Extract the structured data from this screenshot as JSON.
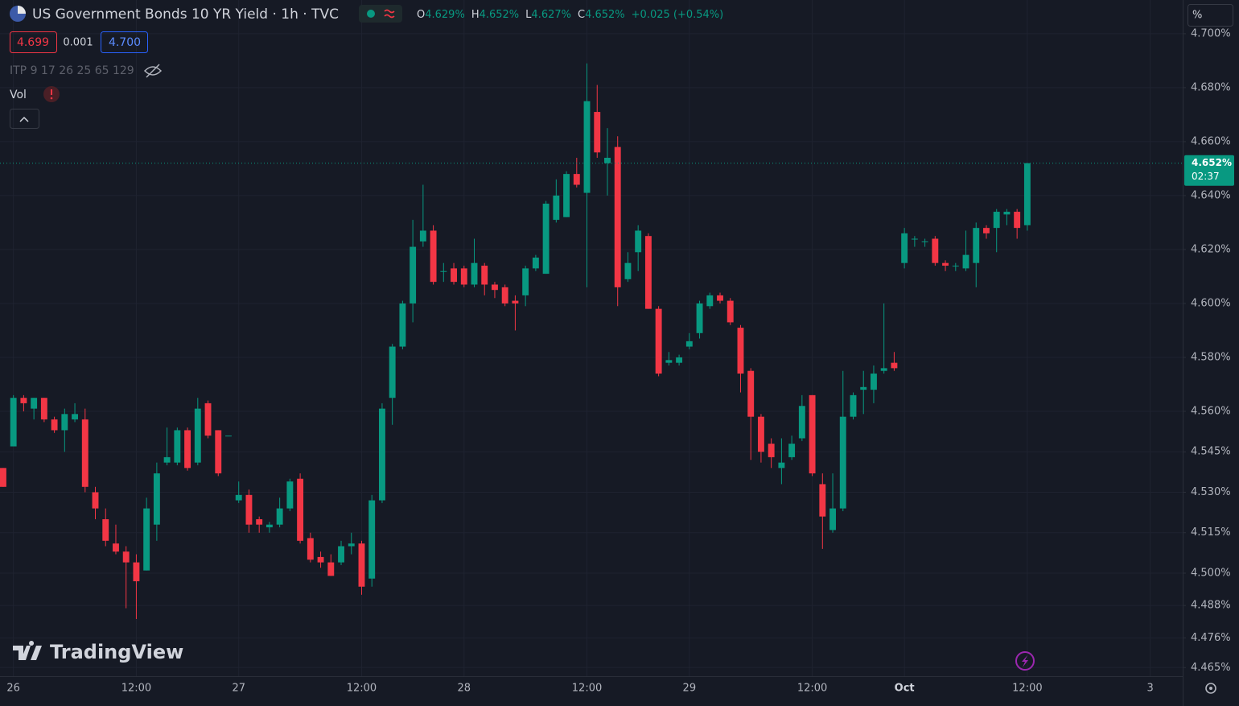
{
  "header": {
    "title": "US Government Bonds 10 YR Yield · 1h · TVC",
    "legend": [
      {
        "key": "O",
        "value": "4.629%"
      },
      {
        "key": "H",
        "value": "4.652%"
      },
      {
        "key": "L",
        "value": "4.627%"
      },
      {
        "key": "C",
        "value": "4.652%"
      }
    ],
    "change": "+0.025 (+0.54%)"
  },
  "quote": {
    "bid": "4.699",
    "spread": "0.001",
    "ask": "4.700"
  },
  "indicators": {
    "itp": "ITP 9 17 26 25 65 129",
    "vol": "Vol"
  },
  "logo": "TradingView",
  "chart_data": {
    "type": "candlestick",
    "unit": "%",
    "grid": true,
    "up_color": "#089981",
    "down_color": "#f23645",
    "x": [
      0,
      1,
      2,
      3,
      4,
      5,
      6,
      7,
      8,
      9,
      10,
      11,
      12,
      13,
      14,
      15,
      16,
      17,
      18,
      19,
      20,
      21,
      22,
      23,
      24,
      25,
      26,
      27,
      28,
      29,
      30,
      31,
      32,
      33,
      34,
      35,
      36,
      37,
      38,
      39,
      40,
      41,
      42,
      43,
      44,
      45,
      46,
      47,
      48,
      49,
      50,
      51,
      52,
      53,
      54,
      55,
      56,
      57,
      58,
      59,
      60,
      61,
      62,
      63,
      64,
      65,
      66,
      67,
      68,
      69,
      70,
      71,
      72,
      73,
      74,
      75,
      76,
      77,
      78,
      79,
      80,
      81,
      82,
      83,
      84,
      85,
      86,
      87,
      88,
      89,
      90,
      91,
      92,
      93,
      94,
      95,
      96,
      97,
      98,
      99,
      100
    ],
    "open": [
      4.539,
      4.547,
      4.565,
      4.561,
      4.565,
      4.557,
      4.553,
      4.557,
      4.557,
      4.53,
      4.52,
      4.511,
      4.508,
      4.504,
      4.501,
      4.518,
      4.541,
      4.541,
      4.553,
      4.541,
      4.563,
      4.553,
      4.551,
      4.527,
      4.529,
      4.52,
      4.517,
      4.518,
      4.524,
      4.535,
      4.513,
      4.506,
      4.504,
      4.504,
      4.51,
      4.511,
      4.498,
      4.527,
      4.565,
      4.584,
      4.6,
      4.623,
      4.627,
      4.612,
      4.613,
      4.613,
      4.607,
      4.614,
      4.607,
      4.606,
      4.601,
      4.603,
      4.613,
      4.611,
      4.631,
      4.632,
      4.648,
      4.641,
      4.671,
      4.652,
      4.658,
      4.609,
      4.619,
      4.625,
      4.598,
      4.578,
      4.578,
      4.584,
      4.589,
      4.599,
      4.603,
      4.601,
      4.591,
      4.575,
      4.558,
      4.548,
      4.539,
      4.543,
      4.55,
      4.566,
      4.533,
      4.516,
      4.524,
      4.558,
      4.568,
      4.568,
      4.575,
      4.578,
      4.615,
      4.624,
      4.623,
      4.624,
      4.615,
      4.614,
      4.613,
      4.615,
      4.628,
      4.628,
      4.633,
      4.634,
      4.629
    ],
    "high": [
      4.539,
      4.566,
      4.566,
      4.565,
      4.565,
      4.558,
      4.561,
      4.563,
      4.561,
      4.532,
      4.524,
      4.518,
      4.51,
      4.507,
      4.528,
      4.541,
      4.554,
      4.554,
      4.554,
      4.565,
      4.564,
      4.553,
      4.551,
      4.534,
      4.531,
      4.521,
      4.519,
      4.528,
      4.535,
      4.537,
      4.515,
      4.508,
      4.507,
      4.512,
      4.515,
      4.512,
      4.529,
      4.563,
      4.585,
      4.601,
      4.631,
      4.644,
      4.629,
      4.615,
      4.615,
      4.614,
      4.624,
      4.615,
      4.608,
      4.607,
      4.603,
      4.614,
      4.618,
      4.638,
      4.646,
      4.649,
      4.654,
      4.689,
      4.681,
      4.665,
      4.662,
      4.619,
      4.629,
      4.626,
      4.599,
      4.582,
      4.581,
      4.589,
      4.601,
      4.604,
      4.604,
      4.602,
      4.592,
      4.576,
      4.559,
      4.55,
      4.55,
      4.551,
      4.566,
      4.566,
      4.537,
      4.537,
      4.575,
      4.567,
      4.575,
      4.577,
      4.6,
      4.582,
      4.628,
      4.625,
      4.624,
      4.625,
      4.616,
      4.615,
      4.627,
      4.63,
      4.629,
      4.635,
      4.635,
      4.635,
      4.652
    ],
    "low": [
      4.532,
      4.547,
      4.56,
      4.557,
      4.556,
      4.552,
      4.545,
      4.556,
      4.53,
      4.52,
      4.51,
      4.507,
      4.487,
      4.483,
      4.501,
      4.512,
      4.54,
      4.54,
      4.538,
      4.54,
      4.55,
      4.536,
      4.551,
      4.526,
      4.515,
      4.515,
      4.515,
      4.517,
      4.523,
      4.511,
      4.504,
      4.502,
      4.499,
      4.503,
      4.507,
      4.492,
      4.495,
      4.526,
      4.555,
      4.583,
      4.593,
      4.621,
      4.607,
      4.608,
      4.607,
      4.606,
      4.606,
      4.603,
      4.602,
      4.599,
      4.59,
      4.599,
      4.612,
      4.611,
      4.63,
      4.632,
      4.643,
      4.606,
      4.654,
      4.64,
      4.599,
      4.608,
      4.612,
      4.598,
      4.573,
      4.577,
      4.577,
      4.583,
      4.587,
      4.598,
      4.6,
      4.592,
      4.567,
      4.542,
      4.541,
      4.539,
      4.533,
      4.542,
      4.549,
      4.536,
      4.509,
      4.515,
      4.523,
      4.557,
      4.559,
      4.563,
      4.574,
      4.575,
      4.613,
      4.621,
      4.621,
      4.614,
      4.612,
      4.612,
      4.612,
      4.606,
      4.624,
      4.619,
      4.629,
      4.624,
      4.627
    ],
    "close": [
      4.532,
      4.565,
      4.563,
      4.565,
      4.557,
      4.553,
      4.559,
      4.559,
      4.532,
      4.524,
      4.512,
      4.508,
      4.504,
      4.497,
      4.524,
      4.537,
      4.543,
      4.553,
      4.539,
      4.561,
      4.551,
      4.537,
      4.551,
      4.529,
      4.518,
      4.518,
      4.518,
      4.524,
      4.534,
      4.512,
      4.505,
      4.504,
      4.499,
      4.51,
      4.511,
      4.495,
      4.527,
      4.561,
      4.584,
      4.6,
      4.621,
      4.627,
      4.608,
      4.612,
      4.608,
      4.607,
      4.615,
      4.607,
      4.605,
      4.6,
      4.6,
      4.613,
      4.617,
      4.637,
      4.64,
      4.648,
      4.644,
      4.675,
      4.656,
      4.654,
      4.606,
      4.615,
      4.627,
      4.598,
      4.574,
      4.579,
      4.58,
      4.586,
      4.6,
      4.603,
      4.601,
      4.593,
      4.574,
      4.558,
      4.545,
      4.543,
      4.541,
      4.548,
      4.562,
      4.537,
      4.521,
      4.524,
      4.558,
      4.566,
      4.569,
      4.574,
      4.576,
      4.576,
      4.626,
      4.624,
      4.623,
      4.615,
      4.614,
      4.614,
      4.618,
      4.628,
      4.626,
      4.634,
      4.634,
      4.628,
      4.652
    ],
    "xlim": [
      -0.31,
      115.17
    ],
    "xticks": [
      {
        "value": 1,
        "label": "26"
      },
      {
        "value": 13,
        "label": "12:00"
      },
      {
        "value": 23,
        "label": "27"
      },
      {
        "value": 35,
        "label": "12:00"
      },
      {
        "value": 45,
        "label": "28"
      },
      {
        "value": 57,
        "label": "12:00"
      },
      {
        "value": 67,
        "label": "29"
      },
      {
        "value": 79,
        "label": "12:00"
      },
      {
        "value": 88,
        "label": "Oct"
      },
      {
        "value": 100,
        "label": "12:00"
      },
      {
        "value": 112,
        "label": "3"
      }
    ],
    "ylim": [
      4.4618,
      4.7125
    ],
    "yticks": [
      {
        "value": 4.7,
        "label": "4.700%"
      },
      {
        "value": 4.68,
        "label": "4.680%"
      },
      {
        "value": 4.66,
        "label": "4.660%"
      },
      {
        "value": 4.64,
        "label": "4.640%"
      },
      {
        "value": 4.62,
        "label": "4.620%"
      },
      {
        "value": 4.6,
        "label": "4.600%"
      },
      {
        "value": 4.58,
        "label": "4.580%"
      },
      {
        "value": 4.56,
        "label": "4.560%"
      },
      {
        "value": 4.545,
        "label": "4.545%"
      },
      {
        "value": 4.53,
        "label": "4.530%"
      },
      {
        "value": 4.515,
        "label": "4.515%"
      },
      {
        "value": 4.5,
        "label": "4.500%"
      },
      {
        "value": 4.488,
        "label": "4.488%"
      },
      {
        "value": 4.476,
        "label": "4.476%"
      },
      {
        "value": 4.465,
        "label": "4.465%"
      }
    ],
    "price_label": {
      "value": 4.652,
      "label": "4.652%"
    },
    "countdown": "02:37"
  }
}
